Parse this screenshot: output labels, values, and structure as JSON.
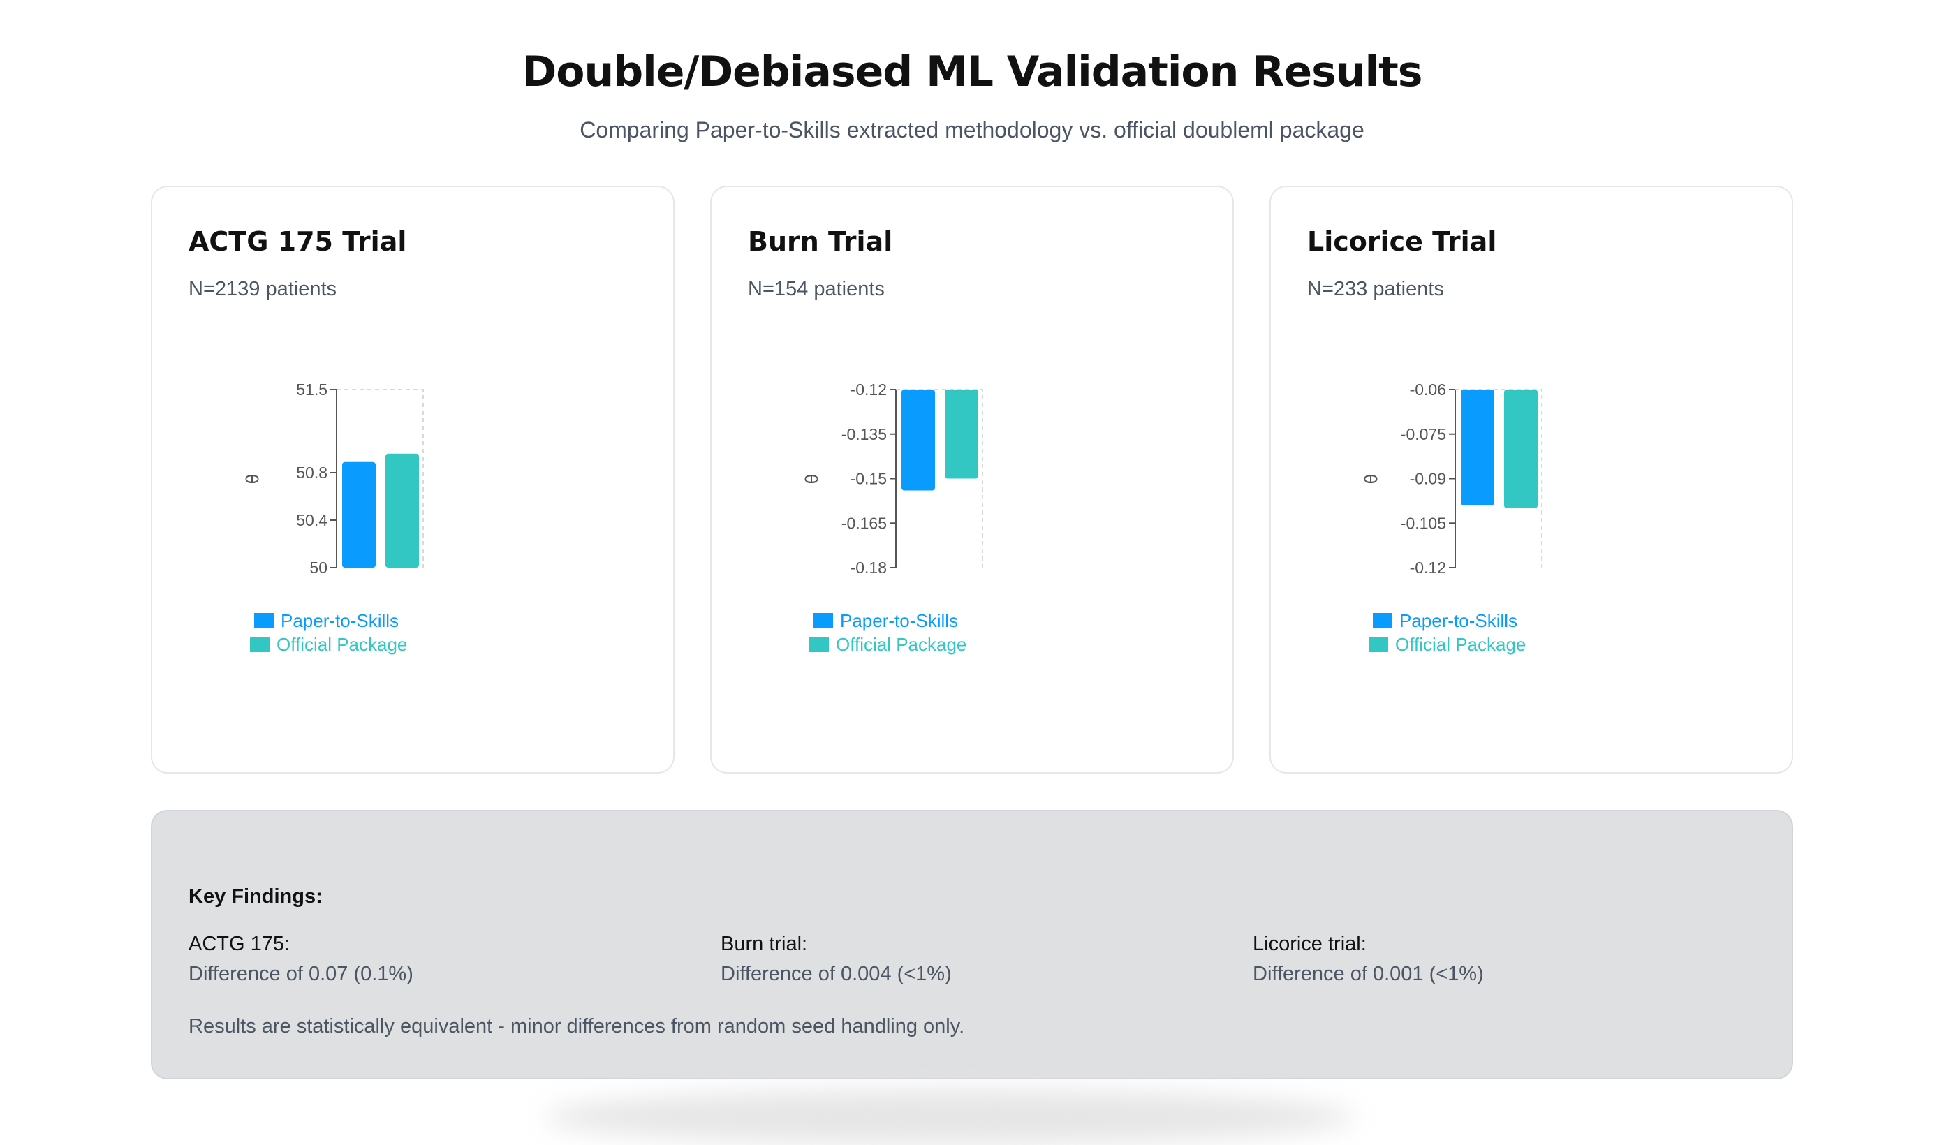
{
  "header": {
    "title": "Double/Debiased ML Validation Results",
    "subtitle": "Comparing Paper-to-Skills extracted methodology vs. official doubleml package"
  },
  "colors": {
    "paper": "#0a9bff",
    "official": "#33c7c4",
    "axis": "#555555",
    "grid": "#d9d9d9"
  },
  "cards": [
    {
      "title": "ACTG 175 Trial",
      "subtitle": "N=2139 patients"
    },
    {
      "title": "Burn Trial",
      "subtitle": "N=154 patients"
    },
    {
      "title": "Licorice Trial",
      "subtitle": "N=233 patients"
    }
  ],
  "chart_data": [
    {
      "type": "bar",
      "title": "ACTG 175 Trial",
      "ylabel": "θ",
      "yticks": [
        "51.5",
        "50.8",
        "50.4",
        "50"
      ],
      "ylim": [
        50,
        51.5
      ],
      "series": [
        {
          "name": "Paper-to-Skills",
          "values": [
            50.89
          ]
        },
        {
          "name": "Official Package",
          "values": [
            50.96
          ]
        }
      ],
      "legend": "bottom-left"
    },
    {
      "type": "bar",
      "title": "Burn Trial",
      "ylabel": "θ",
      "yticks": [
        "-0.12",
        "-0.135",
        "-0.15",
        "-0.165",
        "-0.18"
      ],
      "ylim": [
        -0.18,
        -0.12
      ],
      "series": [
        {
          "name": "Paper-to-Skills",
          "values": [
            -0.154
          ]
        },
        {
          "name": "Official Package",
          "values": [
            -0.15
          ]
        }
      ],
      "legend": "bottom-left"
    },
    {
      "type": "bar",
      "title": "Licorice Trial",
      "ylabel": "θ",
      "yticks": [
        "-0.06",
        "-0.075",
        "-0.09",
        "-0.105",
        "-0.12"
      ],
      "ylim": [
        -0.12,
        -0.06
      ],
      "series": [
        {
          "name": "Paper-to-Skills",
          "values": [
            -0.099
          ]
        },
        {
          "name": "Official Package",
          "values": [
            -0.1
          ]
        }
      ],
      "legend": "bottom-left"
    }
  ],
  "findings": {
    "heading": "Key Findings:",
    "items": [
      {
        "title": "ACTG 175:",
        "detail": "Difference of 0.07 (0.1%)"
      },
      {
        "title": "Burn trial:",
        "detail": "Difference of 0.004 (<1%)"
      },
      {
        "title": "Licorice trial:",
        "detail": "Difference of 0.001 (<1%)"
      }
    ],
    "note": "Results are statistically equivalent - minor differences from random seed handling only."
  }
}
